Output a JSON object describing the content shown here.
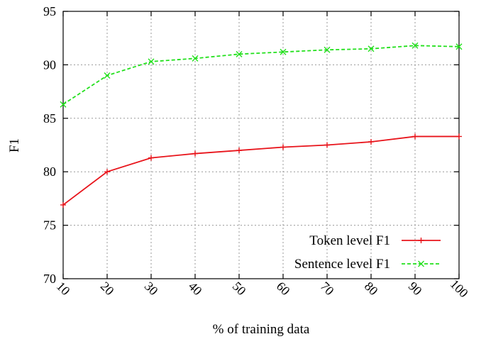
{
  "chart_data": {
    "type": "line",
    "xlabel": "% of training data",
    "ylabel": "F1",
    "x": [
      10,
      20,
      30,
      40,
      50,
      60,
      70,
      80,
      90,
      100
    ],
    "xticks": [
      "10",
      "20",
      "30",
      "40",
      "50",
      "60",
      "70",
      "80",
      "90",
      "100"
    ],
    "yticks": [
      "70",
      "75",
      "80",
      "85",
      "90",
      "95"
    ],
    "xlim": [
      10,
      100
    ],
    "ylim": [
      70,
      95
    ],
    "grid": true,
    "legend_position": "bottom-right",
    "series": [
      {
        "name": "Token level F1",
        "color": "#e8141b",
        "line_style": "solid",
        "marker": "plus",
        "values": [
          76.9,
          80.0,
          81.3,
          81.7,
          82.0,
          82.3,
          82.5,
          82.8,
          83.3,
          83.3
        ]
      },
      {
        "name": "Sentence level F1",
        "color": "#22e01c",
        "line_style": "dashed",
        "marker": "x",
        "values": [
          86.3,
          89.0,
          90.3,
          90.6,
          91.0,
          91.2,
          91.4,
          91.5,
          91.8,
          91.7
        ]
      }
    ]
  }
}
